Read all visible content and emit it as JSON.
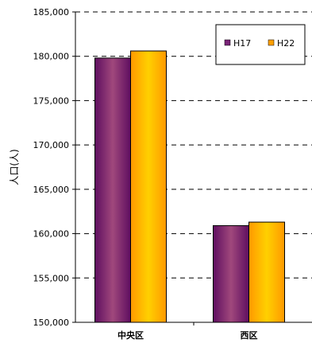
{
  "chart_data": {
    "type": "bar",
    "title": "",
    "xlabel": "",
    "ylabel": "人口(人)",
    "categories": [
      "中央区",
      "西区"
    ],
    "series": [
      {
        "name": "H17",
        "values": [
          179800,
          160900
        ],
        "color": "#7a2478"
      },
      {
        "name": "H22",
        "values": [
          180600,
          161300
        ],
        "color": "#ffa000"
      }
    ],
    "ylim": [
      150000,
      185000
    ],
    "yticks": [
      150000,
      155000,
      160000,
      165000,
      170000,
      175000,
      180000,
      185000
    ],
    "ytick_labels": [
      "150,000",
      "155,000",
      "160,000",
      "165,000",
      "170,000",
      "175,000",
      "180,000",
      "185,000"
    ],
    "grid": "horizontal dashed",
    "legend_position": "top-right"
  }
}
